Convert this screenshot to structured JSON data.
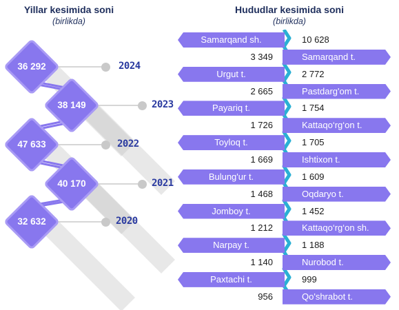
{
  "chart_data": [
    {
      "type": "diagram",
      "title": "Yillar kesimida soni",
      "subtitle": "(birlikda)",
      "categories": [
        "2024",
        "2023",
        "2022",
        "2021",
        "2020"
      ],
      "values": [
        "36 292",
        "38 149",
        "47 633",
        "40 170",
        "32 632"
      ]
    },
    {
      "type": "bar",
      "title": "Hududlar kesimida soni",
      "subtitle": "(birlikda)",
      "categories": [
        "Samarqand sh.",
        "Samarqand t.",
        "Urgut t.",
        "Pastdarg'om t.",
        "Payariq t.",
        "Kattaqo‘rg‘on t.",
        "Toyloq t.",
        "Ishtixon t.",
        "Bulung'ur t.",
        "Oqdaryo t.",
        "Jomboy t.",
        "Kattaqo‘rg‘on sh.",
        "Narpay t.",
        "Nurobod t.",
        "Paxtachi t.",
        "Qo'shrabot t."
      ],
      "values": [
        "10 628",
        "3 349",
        "2 772",
        "2 665",
        "1 754",
        "1 726",
        "1 705",
        "1 669",
        "1 609",
        "1 468",
        "1 452",
        "1 212",
        "1 188",
        "1 140",
        "999",
        "956"
      ]
    }
  ],
  "colors": {
    "accent": "#8877ee",
    "spine": "#2ab0d4",
    "year_text": "#2a3aa0",
    "title": "#1e2e5c"
  }
}
